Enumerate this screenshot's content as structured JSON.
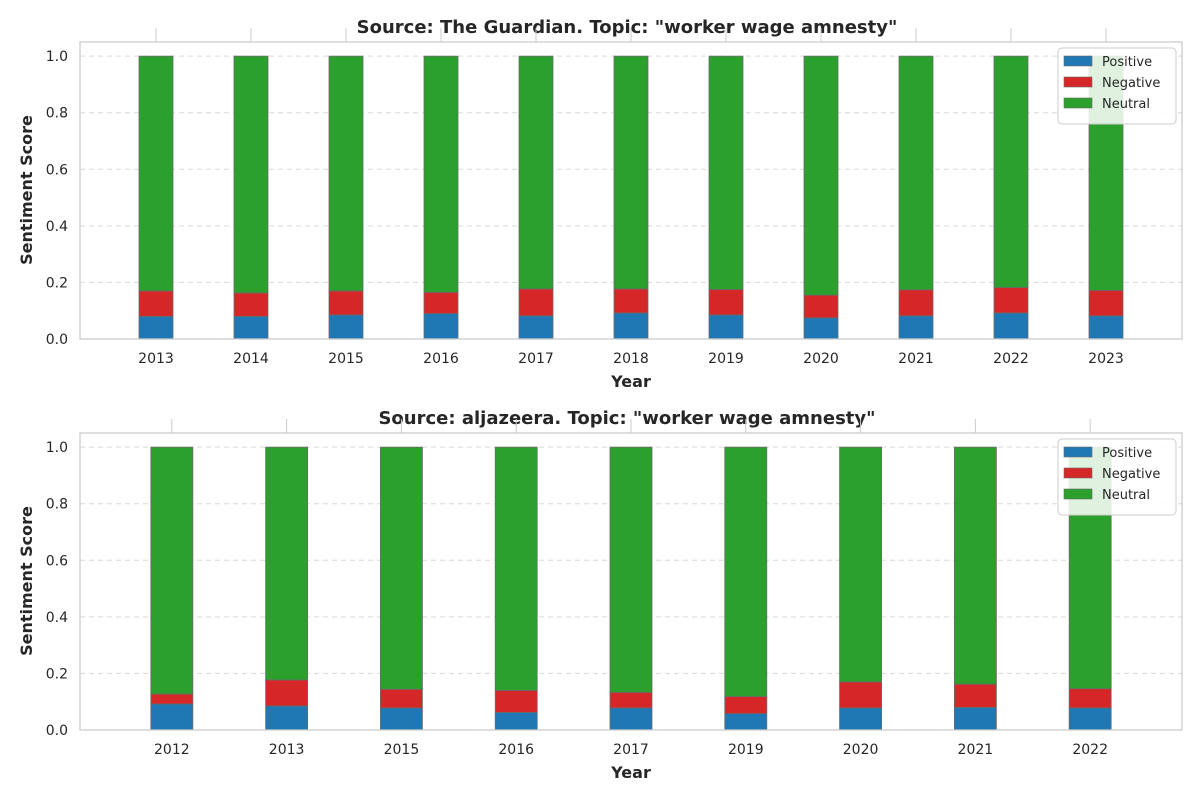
{
  "chart_data": [
    {
      "type": "bar",
      "stacked": true,
      "title": "Source: The Guardian. Topic: \"worker wage amnesty\"",
      "xlabel": "Year",
      "ylabel": "Sentiment Score",
      "ylim": [
        0,
        1.05
      ],
      "yticks": [
        "0.0",
        "0.2",
        "0.4",
        "0.6",
        "0.8",
        "1.0"
      ],
      "grid": true,
      "legend_position": "top-right",
      "categories": [
        "2013",
        "2014",
        "2015",
        "2016",
        "2017",
        "2018",
        "2019",
        "2020",
        "2021",
        "2022",
        "2023"
      ],
      "series": [
        {
          "name": "Positive",
          "color": "#1f77b4",
          "values": [
            0.08,
            0.08,
            0.085,
            0.09,
            0.082,
            0.092,
            0.085,
            0.075,
            0.082,
            0.092,
            0.082
          ]
        },
        {
          "name": "Negative",
          "color": "#d62728",
          "values": [
            0.09,
            0.083,
            0.085,
            0.075,
            0.095,
            0.085,
            0.09,
            0.08,
            0.092,
            0.09,
            0.09
          ]
        },
        {
          "name": "Neutral",
          "color": "#2ca02c",
          "values": [
            0.83,
            0.837,
            0.83,
            0.835,
            0.823,
            0.823,
            0.825,
            0.845,
            0.826,
            0.818,
            0.828
          ]
        }
      ]
    },
    {
      "type": "bar",
      "stacked": true,
      "title": "Source: aljazeera. Topic: \"worker wage amnesty\"",
      "xlabel": "Year",
      "ylabel": "Sentiment Score",
      "ylim": [
        0,
        1.05
      ],
      "yticks": [
        "0.0",
        "0.2",
        "0.4",
        "0.6",
        "0.8",
        "1.0"
      ],
      "grid": true,
      "legend_position": "top-right",
      "categories": [
        "2012",
        "2013",
        "2015",
        "2016",
        "2017",
        "2019",
        "2020",
        "2021",
        "2022"
      ],
      "series": [
        {
          "name": "Positive",
          "color": "#1f77b4",
          "values": [
            0.092,
            0.085,
            0.078,
            0.062,
            0.078,
            0.058,
            0.078,
            0.08,
            0.078
          ]
        },
        {
          "name": "Negative",
          "color": "#d62728",
          "values": [
            0.035,
            0.092,
            0.066,
            0.078,
            0.055,
            0.06,
            0.092,
            0.082,
            0.068
          ]
        },
        {
          "name": "Neutral",
          "color": "#2ca02c",
          "values": [
            0.873,
            0.823,
            0.856,
            0.86,
            0.867,
            0.882,
            0.83,
            0.838,
            0.854
          ]
        }
      ]
    }
  ]
}
